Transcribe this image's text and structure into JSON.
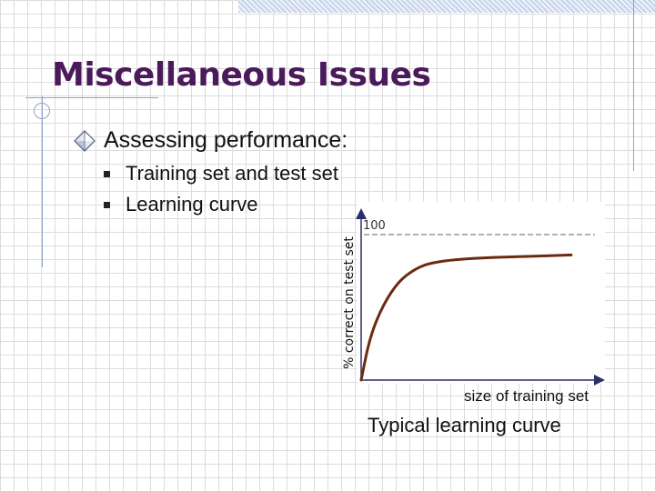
{
  "slide": {
    "title": "Miscellaneous Issues",
    "main_bullet": "Assessing performance:",
    "sub_bullets": [
      "Training set and test set",
      "Learning curve"
    ]
  },
  "chart_data": {
    "type": "line",
    "title": "Typical learning curve",
    "xlabel": "size of training set",
    "ylabel": "% correct on test set",
    "reference_line": {
      "y": 100,
      "label": "100",
      "style": "dashed"
    },
    "ylim": [
      0,
      100
    ],
    "xlim": [
      0,
      1
    ],
    "series": [
      {
        "points": [
          [
            0.0,
            0.0
          ],
          [
            0.04,
            30
          ],
          [
            0.1,
            52
          ],
          [
            0.17,
            68
          ],
          [
            0.24,
            76
          ],
          [
            0.3,
            80
          ],
          [
            0.4,
            82.5
          ],
          [
            0.55,
            84
          ],
          [
            0.75,
            85
          ],
          [
            0.95,
            86
          ]
        ],
        "color": "#6b2b10"
      }
    ],
    "grid": false
  },
  "colors": {
    "title": "#4a1a5a",
    "curve": "#6b2b10",
    "accent": "#8fa3c8"
  },
  "icons": {
    "main_bullet": "diamond-bullet-icon",
    "sub_bullet": "square-bullet-icon"
  }
}
